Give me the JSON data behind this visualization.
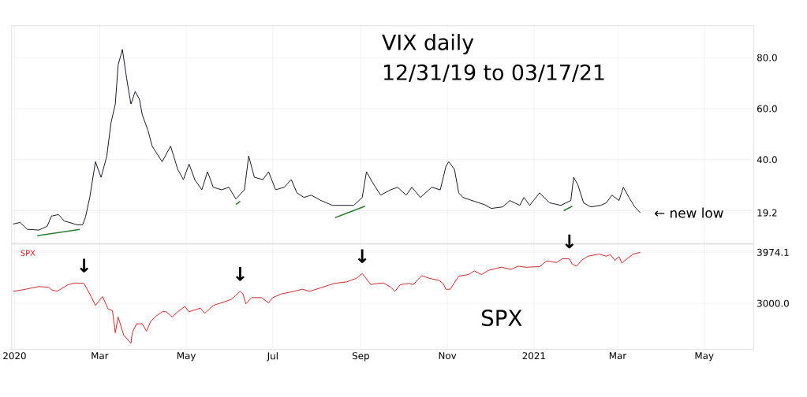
{
  "chart_data": [
    {
      "type": "line",
      "title": "VIX daily",
      "subtitle": "12/31/19 to 03/17/21",
      "grid": true,
      "tick_labels": "y",
      "xlim": [
        "2019-12-30",
        "2021-06-05"
      ],
      "ylim": [
        7.2,
        92.5
      ],
      "xticks": [
        {
          "value": "2020-01-01",
          "label": null
        },
        {
          "value": "2020-03-01",
          "label": null
        },
        {
          "value": "2020-05-01",
          "label": null
        },
        {
          "value": "2020-07-01",
          "label": null
        },
        {
          "value": "2020-09-01",
          "label": null
        },
        {
          "value": "2020-11-01",
          "label": null
        },
        {
          "value": "2021-01-01",
          "label": null
        },
        {
          "value": "2021-03-01",
          "label": null
        },
        {
          "value": "2021-05-01",
          "label": null
        }
      ],
      "yticks": [
        {
          "value": 19.2,
          "label": "19.2"
        },
        {
          "value": 20,
          "label": null
        },
        {
          "value": 40,
          "label": "40.0"
        },
        {
          "value": 60,
          "label": "60.0"
        },
        {
          "value": 80,
          "label": "80.0"
        }
      ],
      "series": [
        {
          "color": "#131722",
          "x": [
            "2019-12-31",
            "2020-01-05",
            "2020-01-10",
            "2020-01-18",
            "2020-01-24",
            "2020-01-27",
            "2020-02-01",
            "2020-02-05",
            "2020-02-14",
            "2020-02-18",
            "2020-02-20",
            "2020-02-23",
            "2020-02-27",
            "2020-03-02",
            "2020-03-06",
            "2020-03-09",
            "2020-03-12",
            "2020-03-14",
            "2020-03-17",
            "2020-03-20",
            "2020-03-23",
            "2020-03-26",
            "2020-03-29",
            "2020-03-31",
            "2020-04-04",
            "2020-04-07",
            "2020-04-14",
            "2020-04-20",
            "2020-04-25",
            "2020-04-29",
            "2020-05-03",
            "2020-05-07",
            "2020-05-12",
            "2020-05-16",
            "2020-05-20",
            "2020-05-26",
            "2020-05-31",
            "2020-06-05",
            "2020-06-11",
            "2020-06-14",
            "2020-06-18",
            "2020-06-24",
            "2020-06-28",
            "2020-07-03",
            "2020-07-09",
            "2020-07-14",
            "2020-07-18",
            "2020-07-23",
            "2020-07-28",
            "2020-08-04",
            "2020-08-12",
            "2020-08-20",
            "2020-08-27",
            "2020-09-02",
            "2020-09-05",
            "2020-09-09",
            "2020-09-15",
            "2020-09-22",
            "2020-09-27",
            "2020-10-03",
            "2020-10-07",
            "2020-10-13",
            "2020-10-21",
            "2020-10-27",
            "2020-10-31",
            "2020-11-02",
            "2020-11-06",
            "2020-11-09",
            "2020-11-12",
            "2020-11-20",
            "2020-11-27",
            "2020-12-02",
            "2020-12-10",
            "2020-12-15",
            "2020-12-22",
            "2020-12-25",
            "2020-12-29",
            "2021-01-05",
            "2021-01-12",
            "2021-01-20",
            "2021-01-27",
            "2021-01-29",
            "2021-02-01",
            "2021-02-05",
            "2021-02-10",
            "2021-02-17",
            "2021-02-21",
            "2021-02-25",
            "2021-03-02",
            "2021-03-05",
            "2021-03-09",
            "2021-03-13",
            "2021-03-17"
          ],
          "values": [
            14.8,
            15.4,
            12.7,
            12.4,
            13.9,
            17.9,
            18.5,
            16.0,
            14.5,
            14.5,
            17.5,
            25.2,
            39.2,
            33.1,
            41.4,
            54.5,
            61.8,
            77.1,
            83.2,
            71.9,
            61.8,
            66.7,
            63.7,
            57.6,
            51.5,
            45.3,
            39.2,
            45.3,
            36.2,
            32.2,
            38.3,
            32.2,
            28.2,
            35.3,
            29.2,
            28.2,
            29.2,
            24.6,
            28.2,
            41.4,
            33.1,
            32.2,
            35.3,
            28.2,
            29.2,
            32.2,
            27.0,
            25.2,
            26.1,
            24.0,
            22.1,
            22.1,
            22.1,
            25.2,
            35.3,
            31.3,
            26.1,
            28.2,
            29.2,
            26.1,
            29.2,
            25.2,
            29.2,
            28.2,
            37.4,
            39.2,
            36.2,
            27.0,
            25.2,
            23.7,
            22.4,
            20.9,
            21.5,
            24.0,
            22.1,
            25.2,
            22.1,
            27.0,
            23.1,
            22.1,
            24.0,
            33.1,
            30.1,
            23.1,
            21.5,
            22.1,
            23.1,
            26.1,
            24.0,
            29.2,
            25.2,
            21.5,
            19.2
          ]
        },
        {
          "color": "#2e7d32",
          "x": [
            "2020-01-17",
            "2020-02-16"
          ],
          "values": [
            10.2,
            12.7
          ]
        },
        {
          "color": "#2e7d32",
          "x": [
            "2020-06-05",
            "2020-06-08"
          ],
          "values": [
            22.4,
            23.7
          ]
        },
        {
          "color": "#2e7d32",
          "x": [
            "2020-08-14",
            "2020-09-04"
          ],
          "values": [
            17.3,
            21.8
          ]
        },
        {
          "color": "#2e7d32",
          "x": [
            "2021-01-22",
            "2021-01-28"
          ],
          "values": [
            20.0,
            21.8
          ]
        }
      ],
      "annotations": [
        {
          "text": "← new low",
          "x": "2021-03-17",
          "y": 19.2
        }
      ]
    },
    {
      "type": "line",
      "grid": true,
      "xlim": [
        "2019-12-30",
        "2021-06-05"
      ],
      "ylim": [
        2120,
        4130
      ],
      "xticks": [
        {
          "value": "2020-01-01",
          "label": "2020"
        },
        {
          "value": "2020-03-01",
          "label": "Mar"
        },
        {
          "value": "2020-05-01",
          "label": "May"
        },
        {
          "value": "2020-07-01",
          "label": "Jul"
        },
        {
          "value": "2020-09-01",
          "label": "Sep"
        },
        {
          "value": "2020-11-01",
          "label": "Nov"
        },
        {
          "value": "2021-01-01",
          "label": "2021"
        },
        {
          "value": "2021-03-01",
          "label": "Mar"
        },
        {
          "value": "2021-05-01",
          "label": "May"
        }
      ],
      "yticks": [
        {
          "value": 3000,
          "label": "3000.0"
        },
        {
          "value": 3974.1,
          "label": "3974.1"
        },
        {
          "value": 4000,
          "label": null
        }
      ],
      "series": [
        {
          "name": "SPX",
          "color": "#c62828",
          "x": [
            "2019-12-31",
            "2020-01-07",
            "2020-01-18",
            "2020-01-25",
            "2020-01-27",
            "2020-01-31",
            "2020-02-08",
            "2020-02-13",
            "2020-02-19",
            "2020-02-24",
            "2020-02-27",
            "2020-03-03",
            "2020-03-07",
            "2020-03-10",
            "2020-03-12",
            "2020-03-14",
            "2020-03-18",
            "2020-03-23",
            "2020-03-24",
            "2020-03-27",
            "2020-03-31",
            "2020-04-03",
            "2020-04-06",
            "2020-04-10",
            "2020-04-14",
            "2020-04-17",
            "2020-04-21",
            "2020-04-26",
            "2020-04-30",
            "2020-05-03",
            "2020-05-11",
            "2020-05-14",
            "2020-05-20",
            "2020-05-28",
            "2020-06-02",
            "2020-06-08",
            "2020-06-10",
            "2020-06-12",
            "2020-06-16",
            "2020-06-23",
            "2020-06-28",
            "2020-07-01",
            "2020-07-07",
            "2020-07-16",
            "2020-07-22",
            "2020-07-27",
            "2020-08-03",
            "2020-08-13",
            "2020-08-22",
            "2020-08-29",
            "2020-09-02",
            "2020-09-08",
            "2020-09-13",
            "2020-09-17",
            "2020-09-22",
            "2020-09-25",
            "2020-09-29",
            "2020-10-05",
            "2020-10-08",
            "2020-10-14",
            "2020-10-19",
            "2020-10-26",
            "2020-10-29",
            "2020-10-31",
            "2020-11-03",
            "2020-11-09",
            "2020-11-16",
            "2020-11-20",
            "2020-11-25",
            "2020-11-30",
            "2020-12-09",
            "2020-12-16",
            "2020-12-21",
            "2020-12-26",
            "2021-01-05",
            "2021-01-10",
            "2021-01-17",
            "2021-01-21",
            "2021-01-26",
            "2021-01-28",
            "2021-01-31",
            "2021-02-04",
            "2021-02-08",
            "2021-02-16",
            "2021-02-21",
            "2021-02-24",
            "2021-02-27",
            "2021-03-02",
            "2021-03-04",
            "2021-03-07",
            "2021-03-12",
            "2021-03-17"
          ],
          "values": [
            3230,
            3260,
            3320,
            3310,
            3260,
            3230,
            3360,
            3390,
            3380,
            3130,
            2960,
            3130,
            2890,
            2860,
            2440,
            2740,
            2390,
            2240,
            2440,
            2610,
            2610,
            2470,
            2660,
            2760,
            2840,
            2840,
            2740,
            2860,
            2940,
            2840,
            2910,
            2810,
            2960,
            3030,
            3080,
            3230,
            3180,
            2990,
            3110,
            3110,
            3010,
            3110,
            3180,
            3230,
            3270,
            3230,
            3290,
            3380,
            3410,
            3480,
            3570,
            3360,
            3380,
            3390,
            3310,
            3230,
            3360,
            3380,
            3360,
            3530,
            3480,
            3440,
            3380,
            3270,
            3270,
            3520,
            3550,
            3620,
            3550,
            3630,
            3690,
            3650,
            3710,
            3690,
            3700,
            3810,
            3780,
            3850,
            3850,
            3750,
            3710,
            3830,
            3900,
            3940,
            3900,
            3930,
            3820,
            3890,
            3770,
            3840,
            3940,
            3974.1
          ]
        }
      ],
      "annotations": [
        "SPX",
        {
          "text": "↓",
          "x": "2020-02-19",
          "y": 3390
        },
        {
          "text": "↓",
          "x": "2020-06-08",
          "y": 3230
        },
        {
          "text": "↓",
          "x": "2020-09-02",
          "y": 3570
        },
        {
          "text": "↓",
          "x": "2021-01-26",
          "y": 3850
        }
      ]
    }
  ]
}
